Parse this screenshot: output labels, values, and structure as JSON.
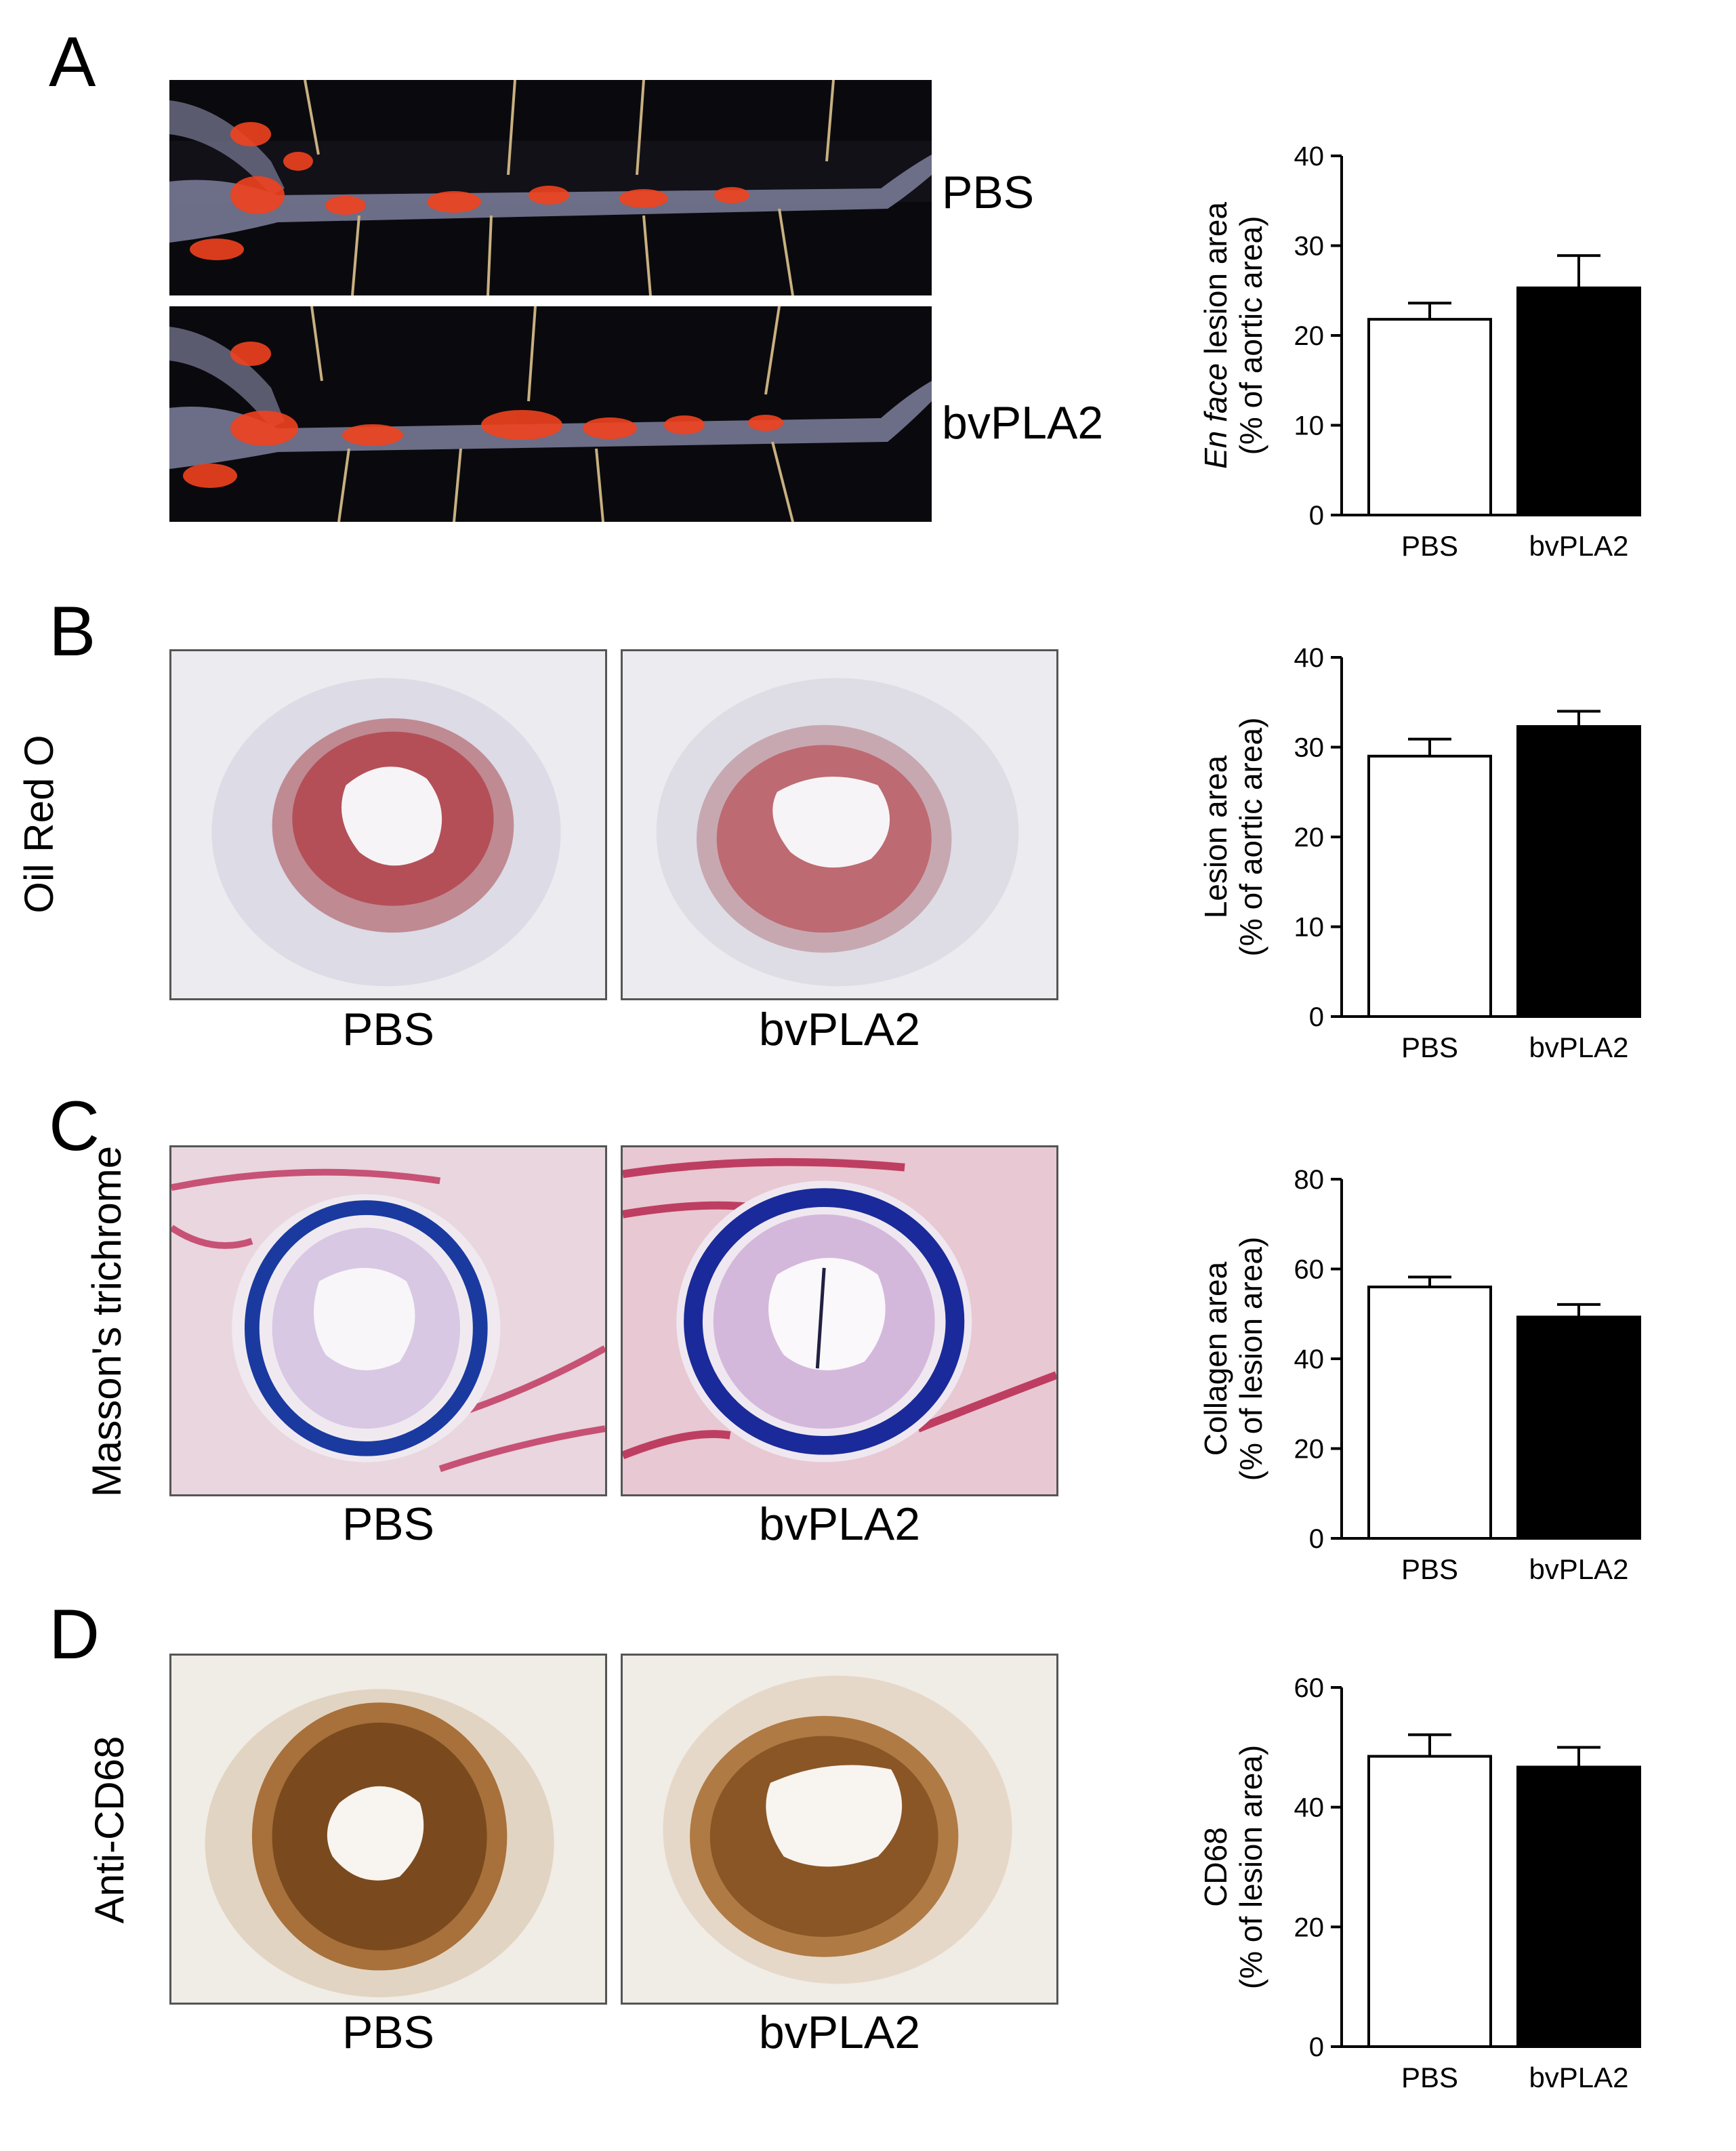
{
  "panels": {
    "A": {
      "letter": "A",
      "image_labels": [
        "PBS",
        "bvPLA2"
      ]
    },
    "B": {
      "letter": "B",
      "row_label": "Oil Red O",
      "image_labels": [
        "PBS",
        "bvPLA2"
      ]
    },
    "C": {
      "letter": "C",
      "row_label": "Masson's trichrome",
      "image_labels": [
        "PBS",
        "bvPLA2"
      ]
    },
    "D": {
      "letter": "D",
      "row_label": "Anti-CD68",
      "image_labels": [
        "PBS",
        "bvPLA2"
      ]
    }
  },
  "colors": {
    "bar_pbs": "#ffffff",
    "bar_bvpla2": "#000000",
    "axis": "#000000"
  },
  "chart_data": [
    {
      "type": "bar",
      "panel": "A",
      "categories": [
        "PBS",
        "bvPLA2"
      ],
      "values": [
        21.8,
        25.3
      ],
      "errors": [
        1.8,
        3.6
      ],
      "ylim": [
        0,
        40
      ],
      "yticks": [
        0,
        10,
        20,
        30,
        40
      ],
      "ylabel_line1_italic": "En face",
      "ylabel_line1_rest": " lesion area",
      "ylabel_line2": "(% of aortic area)"
    },
    {
      "type": "bar",
      "panel": "B",
      "categories": [
        "PBS",
        "bvPLA2"
      ],
      "values": [
        29.0,
        32.3
      ],
      "errors": [
        1.9,
        1.7
      ],
      "ylim": [
        0,
        40
      ],
      "yticks": [
        0,
        10,
        20,
        30,
        40
      ],
      "ylabel_line1_italic": "",
      "ylabel_line1_rest": "Lesion area",
      "ylabel_line2": "(% of aortic area)"
    },
    {
      "type": "bar",
      "panel": "C",
      "categories": [
        "PBS",
        "bvPLA2"
      ],
      "values": [
        56.0,
        49.3
      ],
      "errors": [
        2.2,
        2.8
      ],
      "ylim": [
        0,
        80
      ],
      "yticks": [
        0,
        20,
        40,
        60,
        80
      ],
      "ylabel_line1_italic": "",
      "ylabel_line1_rest": "Collagen area",
      "ylabel_line2": "(% of lesion area)"
    },
    {
      "type": "bar",
      "panel": "D",
      "categories": [
        "PBS",
        "bvPLA2"
      ],
      "values": [
        48.5,
        46.7
      ],
      "errors": [
        3.6,
        3.3
      ],
      "ylim": [
        0,
        60
      ],
      "yticks": [
        0,
        20,
        40,
        60
      ],
      "ylabel_line1_italic": "",
      "ylabel_line1_rest": "CD68",
      "ylabel_line2": "(% of lesion area)"
    }
  ]
}
